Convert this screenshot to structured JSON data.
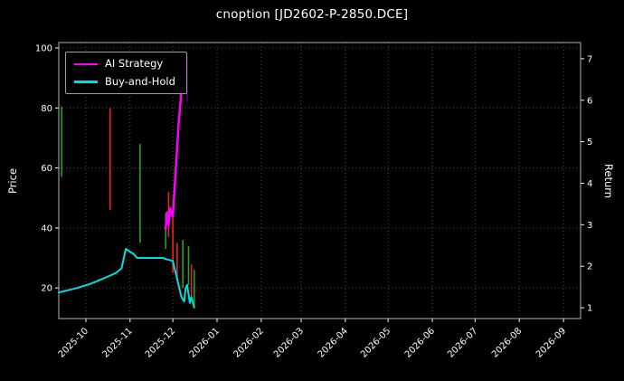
{
  "chart_data": {
    "type": "line",
    "title": "cnoption [JD2602-P-2850.DCE]",
    "colors": {
      "background": "#000000",
      "text": "#ffffff",
      "grid": "#4d4d4d",
      "spine": "#b3b3b3",
      "green": "#1fa51f",
      "red": "#ef2222",
      "purple": "#4b0082",
      "ai_strategy": "#ff00ff",
      "buy_and_hold": "#00dfe0"
    },
    "left_axis": {
      "label": "Price",
      "ticks": [
        20,
        40,
        60,
        80,
        100
      ],
      "range": [
        9.8,
        101.8
      ]
    },
    "right_axis": {
      "label": "Return",
      "ticks": [
        1,
        2,
        3,
        4,
        5,
        6,
        7
      ],
      "range": [
        0.74,
        7.39
      ]
    },
    "x_axis": {
      "tick_labels": [
        "2025-10",
        "2025-11",
        "2025-12",
        "2026-01",
        "2026-02",
        "2026-03",
        "2026-04",
        "2026-05",
        "2026-06",
        "2026-07",
        "2026-08",
        "2026-09"
      ],
      "range": [
        "2025-09-12",
        "2026-09-13"
      ],
      "grid": true
    },
    "legend_position": "upper-left",
    "series": [
      {
        "name": "AI Strategy",
        "axis": "right",
        "color": "#ff00ff",
        "width": 2.5,
        "points": [
          [
            "2025-11-26",
            2.9
          ],
          [
            "2025-11-27",
            3.3
          ],
          [
            "2025-11-28",
            3.0
          ],
          [
            "2025-11-29",
            3.4
          ],
          [
            "2025-12-01",
            3.2
          ],
          [
            "2025-12-03",
            4.3
          ],
          [
            "2025-12-05",
            5.4
          ],
          [
            "2025-12-07",
            6.2
          ],
          [
            "2025-12-08",
            6.9
          ]
        ]
      },
      {
        "name": "Buy-and-Hold",
        "axis": "left",
        "color": "#00dfe0",
        "width": 2,
        "points": [
          [
            "2025-09-12",
            18.5
          ],
          [
            "2025-09-25",
            20.0
          ],
          [
            "2025-10-05",
            21.5
          ],
          [
            "2025-10-15",
            23.5
          ],
          [
            "2025-10-22",
            25.0
          ],
          [
            "2025-10-26",
            26.5
          ],
          [
            "2025-10-29",
            33.0
          ],
          [
            "2025-11-03",
            31.5
          ],
          [
            "2025-11-06",
            30.0
          ],
          [
            "2025-11-12",
            30.0
          ],
          [
            "2025-11-18",
            30.0
          ],
          [
            "2025-11-24",
            30.0
          ],
          [
            "2025-11-27",
            29.5
          ],
          [
            "2025-12-01",
            29.0
          ],
          [
            "2025-12-03",
            25.0
          ],
          [
            "2025-12-05",
            21.0
          ],
          [
            "2025-12-07",
            17.0
          ],
          [
            "2025-12-09",
            15.5
          ],
          [
            "2025-12-10",
            20.0
          ],
          [
            "2025-12-11",
            21.0
          ],
          [
            "2025-12-13",
            15.0
          ],
          [
            "2025-12-14",
            17.0
          ],
          [
            "2025-12-16",
            13.5
          ]
        ]
      }
    ],
    "candles": [
      {
        "date": "2025-09-14",
        "high": 80.5,
        "low": 57,
        "color": "green"
      },
      {
        "date": "2025-10-18",
        "high": 80.0,
        "low": 46,
        "color": "red"
      },
      {
        "date": "2025-11-08",
        "high": 68.0,
        "low": 35,
        "color": "green"
      },
      {
        "date": "2025-11-26",
        "high": 45.0,
        "low": 33,
        "color": "green"
      },
      {
        "date": "2025-11-28",
        "high": 52.0,
        "low": 37,
        "color": "red"
      },
      {
        "date": "2025-12-01",
        "high": 44.0,
        "low": 25,
        "color": "red"
      },
      {
        "date": "2025-12-04",
        "high": 35.0,
        "low": 23,
        "color": "red"
      },
      {
        "date": "2025-12-08",
        "high": 36.0,
        "low": 20,
        "color": "green"
      },
      {
        "date": "2025-12-11",
        "high": 97.0,
        "low": 82,
        "color": "purple"
      },
      {
        "date": "2025-12-12",
        "high": 34.0,
        "low": 21,
        "color": "green"
      },
      {
        "date": "2025-12-14",
        "high": 28.0,
        "low": 17,
        "color": "red"
      },
      {
        "date": "2025-12-16",
        "high": 26.0,
        "low": 14,
        "color": "green"
      }
    ]
  }
}
